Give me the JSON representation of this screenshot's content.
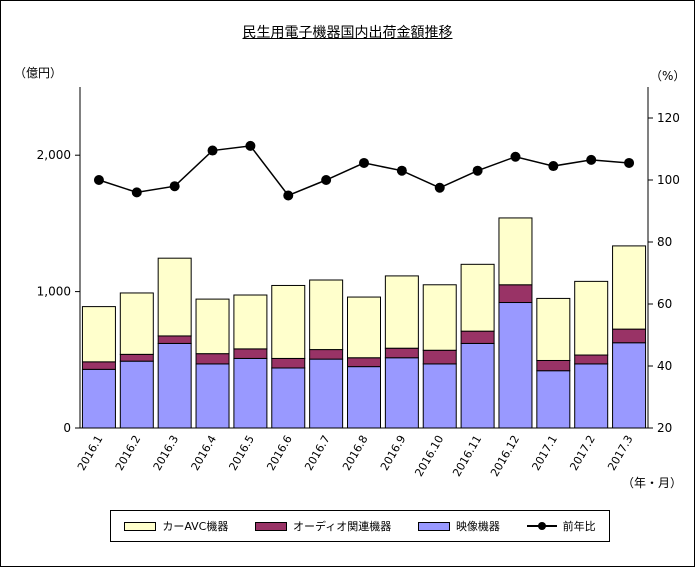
{
  "title": "民生用電子機器国内出荷金額推移",
  "chart_data": {
    "type": "bar",
    "categories": [
      "2016.1",
      "2016.2",
      "2016.3",
      "2016.4",
      "2016.5",
      "2016.6",
      "2016.7",
      "2016.8",
      "2016.9",
      "2016.10",
      "2016.11",
      "2016.12",
      "2017.1",
      "2017.2",
      "2017.3"
    ],
    "series": [
      {
        "name": "映像機器",
        "color": "#9999ff",
        "values": [
          430,
          490,
          620,
          470,
          510,
          440,
          505,
          450,
          515,
          470,
          620,
          920,
          420,
          470,
          625
        ]
      },
      {
        "name": "オーディオ関連機器",
        "color": "#993366",
        "values": [
          55,
          50,
          55,
          75,
          70,
          70,
          70,
          65,
          70,
          100,
          90,
          130,
          75,
          65,
          100
        ]
      },
      {
        "name": "カーAVC機器",
        "color": "#ffffcc",
        "values": [
          405,
          450,
          570,
          400,
          395,
          535,
          510,
          445,
          530,
          480,
          490,
          490,
          455,
          540,
          610
        ]
      }
    ],
    "yoy": {
      "name": "前年比",
      "values": [
        100,
        96,
        98,
        109.5,
        111,
        95,
        100,
        105.5,
        103,
        97.5,
        103,
        107.5,
        104.5,
        106.5,
        105.5
      ]
    },
    "y_left": {
      "unit": "（億円）",
      "ticks": [
        "0",
        "1,000",
        "2,000"
      ],
      "ylim": [
        0,
        2500
      ]
    },
    "y_right": {
      "unit": "（%）",
      "ticks": [
        "20",
        "40",
        "60",
        "80",
        "100",
        "120"
      ],
      "ylim": [
        20,
        130
      ]
    },
    "x_unit": "（年・月）",
    "legend_position": "bottom"
  }
}
